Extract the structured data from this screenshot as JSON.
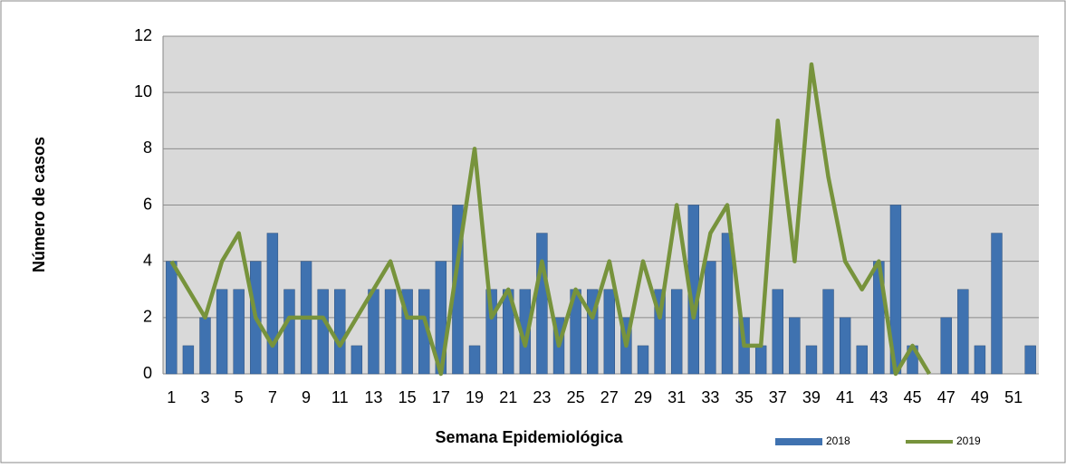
{
  "chart_data": {
    "type": "bar",
    "x_label": "Semana Epidemiológica",
    "y_label": "Número de casos",
    "categories": [
      "1",
      null,
      "3",
      null,
      "5",
      null,
      "7",
      null,
      "9",
      null,
      "11",
      null,
      "13",
      null,
      "15",
      null,
      "17",
      null,
      "19",
      null,
      "21",
      null,
      "23",
      null,
      "25",
      null,
      "27",
      null,
      "29",
      null,
      "31",
      null,
      "33",
      null,
      "35",
      null,
      "37",
      null,
      "39",
      null,
      "41",
      null,
      "43",
      null,
      "45",
      null,
      "47",
      null,
      "49",
      null,
      "51",
      null
    ],
    "series": [
      {
        "name": "2018",
        "type": "bar",
        "color": "#3f72b0",
        "values": [
          4,
          1,
          2,
          3,
          3,
          4,
          5,
          3,
          4,
          3,
          3,
          1,
          3,
          3,
          3,
          3,
          4,
          6,
          1,
          3,
          3,
          3,
          5,
          2,
          3,
          3,
          3,
          2,
          1,
          3,
          3,
          6,
          4,
          5,
          2,
          1,
          3,
          2,
          1,
          3,
          2,
          1,
          4,
          6,
          1,
          0,
          2,
          3,
          1,
          5,
          0,
          1
        ]
      },
      {
        "name": "2019",
        "type": "line",
        "color": "#77933c",
        "values": [
          4,
          3,
          2,
          4,
          5,
          2,
          1,
          2,
          2,
          2,
          1,
          2,
          3,
          4,
          2,
          2,
          0,
          4,
          8,
          2,
          3,
          1,
          4,
          1,
          3,
          2,
          4,
          1,
          4,
          2,
          6,
          2,
          5,
          6,
          1,
          1,
          9,
          4,
          11,
          7,
          4,
          3,
          4,
          0,
          1,
          0,
          null,
          null,
          null,
          null,
          null,
          null
        ]
      }
    ],
    "ylim": [
      0,
      12
    ],
    "yticks": [
      0,
      2,
      4,
      6,
      8,
      10,
      12
    ],
    "grid": true,
    "legend": "bottom-right"
  }
}
